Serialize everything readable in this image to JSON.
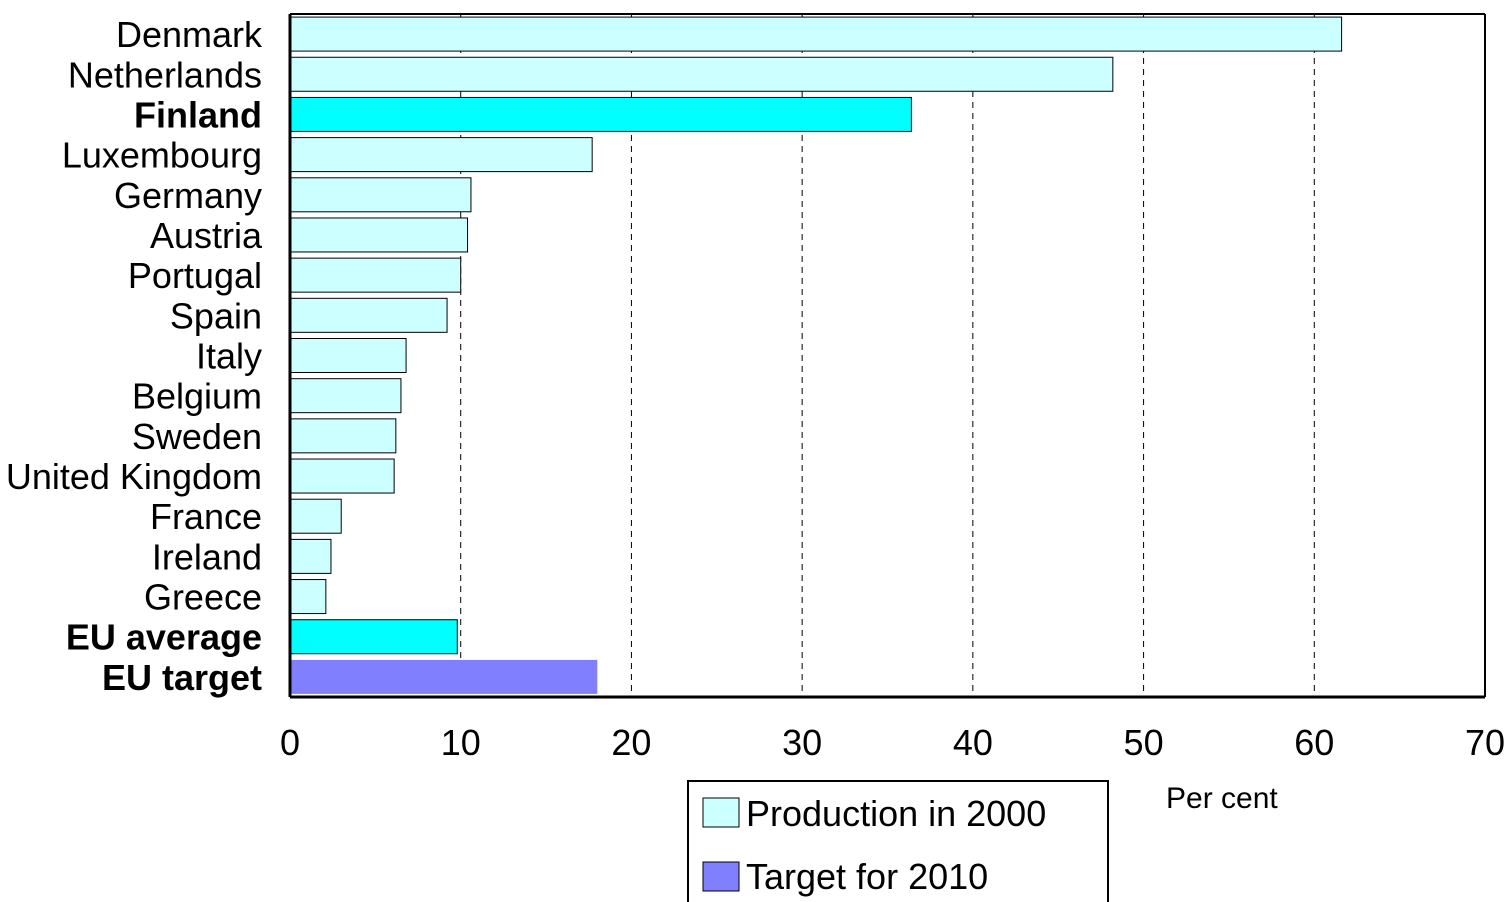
{
  "chart_data": {
    "type": "bar",
    "orientation": "horizontal",
    "categories": [
      "Denmark",
      "Netherlands",
      "Finland",
      "Luxembourg",
      "Germany",
      "Austria",
      "Portugal",
      "Spain",
      "Italy",
      "Belgium",
      "Sweden",
      "United Kingdom",
      "France",
      "Ireland",
      "Greece",
      "EU average",
      "EU target"
    ],
    "bold_categories": [
      "Finland",
      "EU average",
      "EU target"
    ],
    "values": [
      61.6,
      48.2,
      36.4,
      17.7,
      10.6,
      10.4,
      10.0,
      9.2,
      6.8,
      6.5,
      6.2,
      6.1,
      3.0,
      2.4,
      2.1,
      9.8,
      18.0
    ],
    "bar_series": [
      "production",
      "production",
      "highlight",
      "production",
      "production",
      "production",
      "production",
      "production",
      "production",
      "production",
      "production",
      "production",
      "production",
      "production",
      "production",
      "highlight",
      "target"
    ],
    "series": [
      {
        "key": "production",
        "name": "Production in 2000",
        "color": "#ccffff"
      },
      {
        "key": "target",
        "name": "Target for 2010",
        "color": "#8080ff"
      }
    ],
    "highlight_color": "#00ffff",
    "xlim": [
      0,
      70
    ],
    "xticks": [
      0,
      10,
      20,
      30,
      40,
      50,
      60,
      70
    ],
    "xlabel": "Per cent",
    "title": "",
    "grid": true,
    "legend_position": "bottom"
  }
}
